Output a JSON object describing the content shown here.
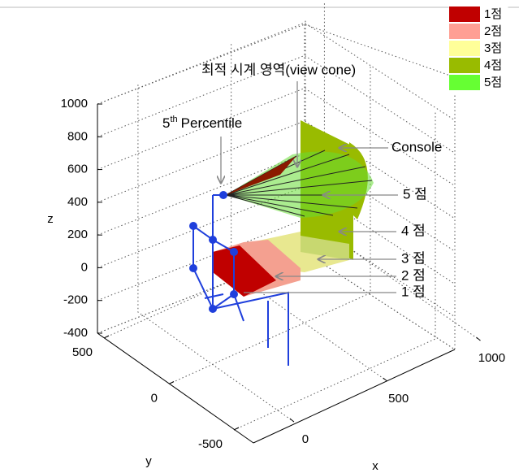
{
  "chart_data": {
    "type": "scene3d",
    "legend": {
      "position": "upper right",
      "items": [
        {
          "name": "1점",
          "color": "#c00000"
        },
        {
          "name": "2점",
          "color": "#ff9f94"
        },
        {
          "name": "3점",
          "color": "#ffff99"
        },
        {
          "name": "4점",
          "color": "#99bb00"
        },
        {
          "name": "5점",
          "color": "#66ff33"
        }
      ]
    },
    "annotations": {
      "view_cone": "최적 시계 영역(view cone)",
      "percentile_number": "5",
      "percentile_suffix": "th",
      "percentile_text": "Percentile",
      "console": "Console",
      "score5": "5 점",
      "score4": "4 점",
      "score3": "3 점",
      "score2": "2 점",
      "score1": "1 점"
    },
    "zlabel": "z",
    "zlim": [
      -400,
      1000
    ],
    "zticks": [
      -400,
      -200,
      0,
      200,
      400,
      600,
      800,
      1000
    ],
    "ylabel": "y",
    "ylim": [
      -500,
      500
    ],
    "yticks": [
      -500,
      0,
      500
    ],
    "xlabel": "x",
    "xlim": [
      -200,
      850
    ],
    "xticks": [
      0,
      500,
      1000
    ],
    "grid": true
  }
}
